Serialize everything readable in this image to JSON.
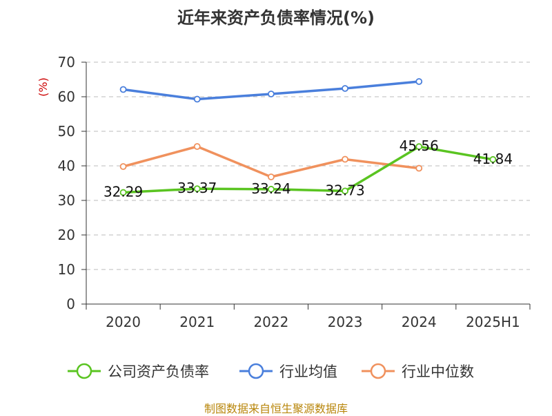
{
  "title": "近年来资产负债率情况(%)",
  "source": "制图数据来自恒生聚源数据库",
  "chart_data": {
    "type": "line",
    "title": "近年来资产负债率情况(%)",
    "ylabel": "(%)",
    "xlabel": "",
    "categories": [
      "2020",
      "2021",
      "2022",
      "2023",
      "2024",
      "2025H1"
    ],
    "ylim": [
      0,
      70
    ],
    "yticks": [
      0,
      10,
      20,
      30,
      40,
      50,
      60,
      70
    ],
    "grid": true,
    "legend_position": "bottom",
    "series": [
      {
        "name": "公司资产负债率",
        "color": "#5ac421",
        "values": [
          32.29,
          33.37,
          33.24,
          32.73,
          45.56,
          41.84
        ],
        "show_labels": true
      },
      {
        "name": "行业均值",
        "color": "#4a7fdc",
        "values": [
          62.1,
          59.3,
          60.8,
          62.4,
          64.4,
          null
        ],
        "show_labels": false
      },
      {
        "name": "行业中位数",
        "color": "#f0915d",
        "values": [
          39.8,
          45.6,
          36.8,
          41.9,
          39.3,
          null
        ],
        "show_labels": false
      }
    ]
  }
}
